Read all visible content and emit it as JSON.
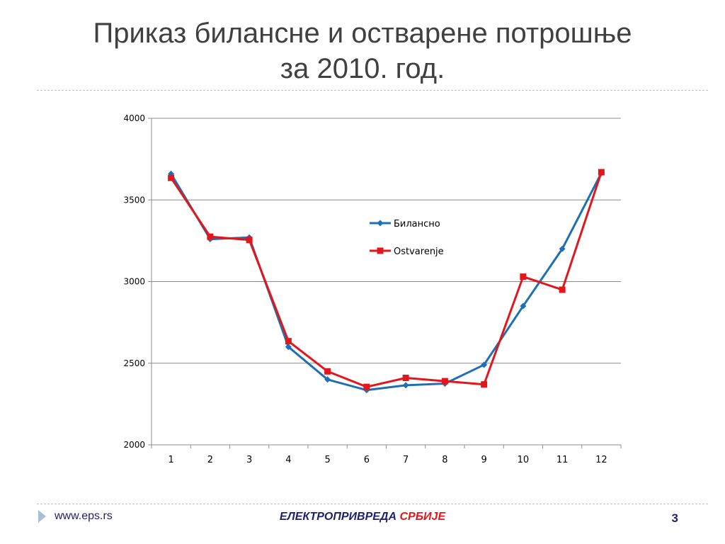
{
  "slide": {
    "title_line1": "Приказ билансне и остварене потрошње",
    "title_line2": "за 2010. год.",
    "footer_url": "www.eps.rs",
    "footer_brand_part1": "ЕЛЕКТРОПРИВРЕДА",
    "footer_brand_part2": "СРБИЈЕ",
    "page_number": "3"
  },
  "colors": {
    "title": "#404040",
    "series_bilansno": "#1f6fb4",
    "series_ostvarenje": "#e3161b",
    "gridline": "#8c8c8c",
    "footer_navy": "#1f1f6e",
    "footer_red": "#e3161b"
  },
  "chart_data": {
    "type": "line",
    "title": "",
    "xlabel": "",
    "ylabel": "",
    "categories": [
      "1",
      "2",
      "3",
      "4",
      "5",
      "6",
      "7",
      "8",
      "9",
      "10",
      "11",
      "12"
    ],
    "ylim": [
      2000,
      4000
    ],
    "yticks": [
      2000,
      2500,
      3000,
      3500,
      4000
    ],
    "grid": true,
    "legend_position": "inside-right-upper",
    "series": [
      {
        "name": "Билансно",
        "marker": "diamond",
        "color": "#1f6fb4",
        "values": [
          3660,
          3260,
          3270,
          2600,
          2400,
          2335,
          2365,
          2375,
          2490,
          2850,
          3200,
          3665
        ]
      },
      {
        "name": "Ostvarenje",
        "marker": "square",
        "color": "#e3161b",
        "values": [
          3635,
          3275,
          3255,
          2635,
          2450,
          2355,
          2410,
          2390,
          2370,
          3030,
          2950,
          3670
        ]
      }
    ]
  }
}
